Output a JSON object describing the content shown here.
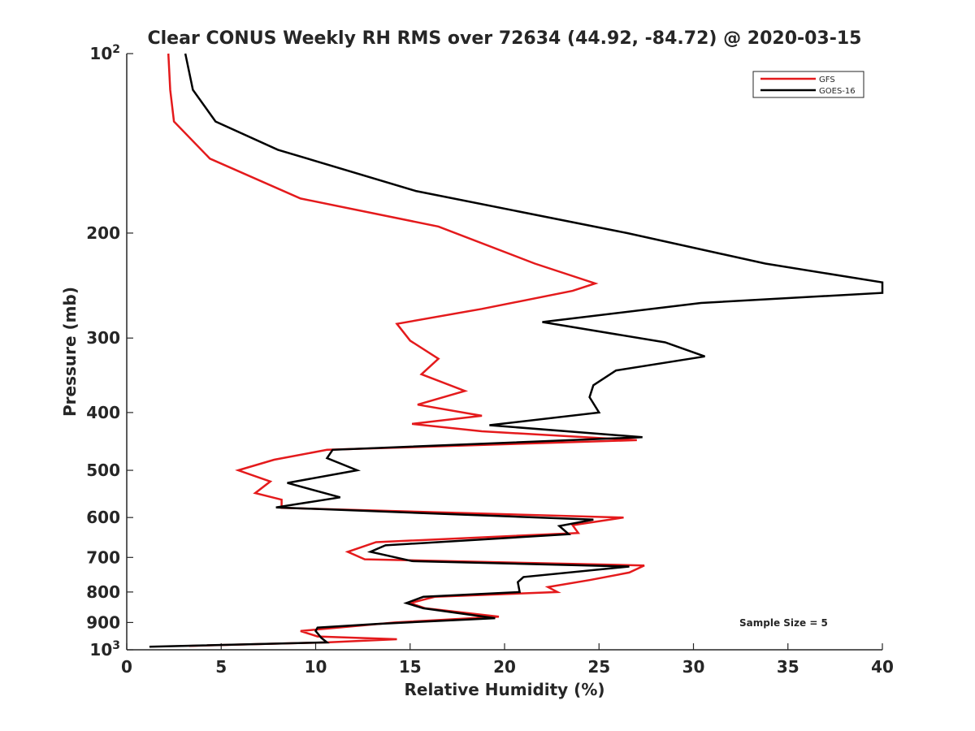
{
  "chart_data": {
    "type": "line",
    "title": "Clear CONUS Weekly RH RMS over 72634 (44.92, -84.72) @ 2020-03-15",
    "xlabel": "Relative Humidity (%)",
    "ylabel": "Pressure (mb)",
    "xlim": [
      0,
      40
    ],
    "ylim": [
      100,
      1000
    ],
    "yscale": "log",
    "yaxis_direction": "reversed",
    "x_ticks": [
      0,
      5,
      10,
      15,
      20,
      25,
      30,
      35,
      40
    ],
    "x_tick_labels": [
      "0",
      "5",
      "10",
      "15",
      "20",
      "25",
      "30",
      "35",
      "40"
    ],
    "y_ticks": [
      {
        "value": 100,
        "base": "10",
        "exp": "2"
      },
      {
        "value": 200,
        "label": "200"
      },
      {
        "value": 300,
        "label": "300"
      },
      {
        "value": 400,
        "label": "400"
      },
      {
        "value": 500,
        "label": "500"
      },
      {
        "value": 600,
        "label": "600"
      },
      {
        "value": 700,
        "label": "700"
      },
      {
        "value": 800,
        "label": "800"
      },
      {
        "value": 900,
        "label": "900"
      },
      {
        "value": 1000,
        "base": "10",
        "exp": "3"
      }
    ],
    "legend_position": "top-right",
    "annotation": "Sample Size = 5",
    "series": [
      {
        "name": "GFS",
        "color": "#e41a1c",
        "points": [
          {
            "rh": 2.2,
            "p": 100
          },
          {
            "rh": 2.3,
            "p": 115
          },
          {
            "rh": 2.5,
            "p": 130
          },
          {
            "rh": 4.4,
            "p": 150
          },
          {
            "rh": 9.2,
            "p": 175
          },
          {
            "rh": 16.5,
            "p": 195
          },
          {
            "rh": 21.6,
            "p": 225
          },
          {
            "rh": 24.8,
            "p": 243
          },
          {
            "rh": 23.6,
            "p": 250
          },
          {
            "rh": 18.8,
            "p": 268
          },
          {
            "rh": 14.3,
            "p": 284
          },
          {
            "rh": 15.0,
            "p": 303
          },
          {
            "rh": 16.5,
            "p": 325
          },
          {
            "rh": 15.6,
            "p": 345
          },
          {
            "rh": 17.9,
            "p": 368
          },
          {
            "rh": 15.4,
            "p": 388
          },
          {
            "rh": 18.8,
            "p": 405
          },
          {
            "rh": 15.1,
            "p": 418
          },
          {
            "rh": 18.8,
            "p": 430
          },
          {
            "rh": 27.0,
            "p": 445
          },
          {
            "rh": 10.6,
            "p": 462
          },
          {
            "rh": 7.8,
            "p": 480
          },
          {
            "rh": 5.9,
            "p": 500
          },
          {
            "rh": 7.6,
            "p": 522
          },
          {
            "rh": 6.8,
            "p": 546
          },
          {
            "rh": 8.2,
            "p": 560
          },
          {
            "rh": 8.2,
            "p": 578
          },
          {
            "rh": 26.3,
            "p": 600
          },
          {
            "rh": 23.6,
            "p": 618
          },
          {
            "rh": 23.9,
            "p": 637
          },
          {
            "rh": 13.2,
            "p": 660
          },
          {
            "rh": 11.7,
            "p": 685
          },
          {
            "rh": 12.6,
            "p": 705
          },
          {
            "rh": 27.4,
            "p": 722
          },
          {
            "rh": 26.6,
            "p": 742
          },
          {
            "rh": 24.5,
            "p": 764
          },
          {
            "rh": 22.3,
            "p": 785
          },
          {
            "rh": 22.8,
            "p": 800
          },
          {
            "rh": 16.3,
            "p": 815
          },
          {
            "rh": 15.0,
            "p": 835
          },
          {
            "rh": 15.8,
            "p": 852
          },
          {
            "rh": 19.7,
            "p": 880
          },
          {
            "rh": 14.2,
            "p": 900
          },
          {
            "rh": 9.2,
            "p": 930
          },
          {
            "rh": 10.1,
            "p": 950
          },
          {
            "rh": 14.3,
            "p": 960
          },
          {
            "rh": 10.6,
            "p": 972
          },
          {
            "rh": 3.3,
            "p": 985
          }
        ]
      },
      {
        "name": "GOES-16",
        "color": "#000000",
        "points": [
          {
            "rh": 3.1,
            "p": 100
          },
          {
            "rh": 3.5,
            "p": 115
          },
          {
            "rh": 4.7,
            "p": 130
          },
          {
            "rh": 8.0,
            "p": 145
          },
          {
            "rh": 15.3,
            "p": 170
          },
          {
            "rh": 26.5,
            "p": 200
          },
          {
            "rh": 33.8,
            "p": 225
          },
          {
            "rh": 40.0,
            "p": 242
          },
          {
            "rh": 40.0,
            "p": 252
          },
          {
            "rh": 30.4,
            "p": 262
          },
          {
            "rh": 22.0,
            "p": 282
          },
          {
            "rh": 28.5,
            "p": 305
          },
          {
            "rh": 30.6,
            "p": 322
          },
          {
            "rh": 25.9,
            "p": 340
          },
          {
            "rh": 24.7,
            "p": 360
          },
          {
            "rh": 24.5,
            "p": 377
          },
          {
            "rh": 25.0,
            "p": 400
          },
          {
            "rh": 19.2,
            "p": 420
          },
          {
            "rh": 27.3,
            "p": 440
          },
          {
            "rh": 10.9,
            "p": 462
          },
          {
            "rh": 10.6,
            "p": 477
          },
          {
            "rh": 12.2,
            "p": 500
          },
          {
            "rh": 8.5,
            "p": 525
          },
          {
            "rh": 11.3,
            "p": 555
          },
          {
            "rh": 7.9,
            "p": 577
          },
          {
            "rh": 24.7,
            "p": 605
          },
          {
            "rh": 22.9,
            "p": 620
          },
          {
            "rh": 23.4,
            "p": 640
          },
          {
            "rh": 13.7,
            "p": 668
          },
          {
            "rh": 12.9,
            "p": 685
          },
          {
            "rh": 15.1,
            "p": 710
          },
          {
            "rh": 26.6,
            "p": 725
          },
          {
            "rh": 21.0,
            "p": 755
          },
          {
            "rh": 20.7,
            "p": 770
          },
          {
            "rh": 20.8,
            "p": 800
          },
          {
            "rh": 15.7,
            "p": 815
          },
          {
            "rh": 14.8,
            "p": 835
          },
          {
            "rh": 15.7,
            "p": 852
          },
          {
            "rh": 19.5,
            "p": 885
          },
          {
            "rh": 13.2,
            "p": 905
          },
          {
            "rh": 10.1,
            "p": 918
          },
          {
            "rh": 10.0,
            "p": 930
          },
          {
            "rh": 10.3,
            "p": 955
          },
          {
            "rh": 10.6,
            "p": 972
          },
          {
            "rh": 1.2,
            "p": 988
          }
        ]
      }
    ]
  }
}
